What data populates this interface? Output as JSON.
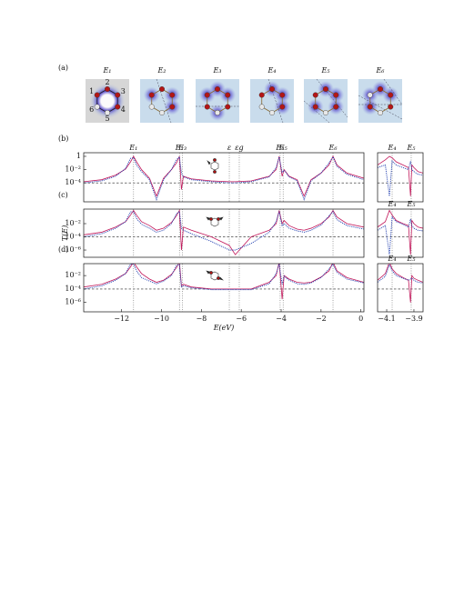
{
  "figure_a": {
    "panel_label": "(a)",
    "states": [
      "E₁",
      "E₂",
      "E₃",
      "E₄",
      "E₅",
      "E₆"
    ],
    "site_labels": [
      "1",
      "2",
      "3",
      "4",
      "5",
      "6"
    ]
  },
  "chart_data": [
    {
      "type": "line",
      "panel_label": "(b)",
      "log_y": true,
      "xlim": [
        -13.9,
        0.15
      ],
      "ylim": [
        1.4e-07,
        3.5
      ],
      "yticks": [
        {
          "value": 1,
          "label": "1"
        },
        {
          "value": 0.01,
          "label": "10⁻²"
        },
        {
          "value": 0.0001,
          "label": "10⁻⁴"
        }
      ],
      "reference_level": 0.0001,
      "vlines": [
        {
          "value": -11.4,
          "label": "E₁"
        },
        {
          "value": -9.1,
          "label": "E₂"
        },
        {
          "value": -8.95,
          "label": "E₃"
        },
        {
          "value": -6.6,
          "label": "ε"
        },
        {
          "value": -6.1,
          "label": "εg"
        },
        {
          "value": -4.05,
          "label": "E₄"
        },
        {
          "value": -3.9,
          "label": "E₅"
        },
        {
          "value": -1.4,
          "label": "E₆"
        }
      ],
      "x": [
        -13.9,
        -13,
        -12.3,
        -11.8,
        -11.55,
        -11.4,
        -11.25,
        -11,
        -10.6,
        -10.25,
        -9.9,
        -9.5,
        -9.25,
        -9.1,
        -9.0,
        -8.9,
        -8.5,
        -7.5,
        -6.6,
        -6.3,
        -5.5,
        -4.6,
        -4.25,
        -4.1,
        -3.95,
        -3.85,
        -3.6,
        -3.2,
        -2.85,
        -2.5,
        -2,
        -1.6,
        -1.4,
        -1.2,
        -0.7,
        0.15
      ],
      "series": [
        {
          "color": "#c2185b",
          "line_style": "solid",
          "values": [
            0.00015,
            0.0003,
            0.0015,
            0.012,
            0.15,
            1,
            0.15,
            0.01,
            0.0005,
            1e-06,
            0.0005,
            0.01,
            0.1,
            1,
            1e-05,
            0.001,
            0.0004,
            0.0002,
            0.00015,
            0.00015,
            0.0002,
            0.001,
            0.01,
            1,
            0.001,
            0.01,
            0.001,
            0.0003,
            1e-06,
            0.0003,
            0.003,
            0.05,
            1,
            0.05,
            0.003,
            0.0005
          ]
        },
        {
          "color": "#2340b0",
          "line_style": "dotted",
          "values": [
            0.0001,
            0.0002,
            0.001,
            0.015,
            0.5,
            0.6,
            0.05,
            0.005,
            0.0003,
            3e-07,
            0.0003,
            0.01,
            0.3,
            0.8,
            0.003,
            0.0008,
            0.0003,
            0.00015,
            0.0001,
            0.0001,
            0.00015,
            0.0008,
            0.02,
            0.8,
            0.004,
            0.008,
            0.0008,
            0.0002,
            3e-07,
            0.0002,
            0.003,
            0.1,
            0.8,
            0.03,
            0.002,
            0.0003
          ]
        }
      ]
    },
    {
      "type": "line",
      "panel_label": "(c)",
      "ylabel": "T(E)",
      "log_y": true,
      "xlim": [
        -13.9,
        0.15
      ],
      "ylim": [
        8e-08,
        1.6
      ],
      "yticks": [
        {
          "value": 0.01,
          "label": "10⁻²"
        },
        {
          "value": 0.0001,
          "label": "10⁻⁴"
        },
        {
          "value": 1e-06,
          "label": "10⁻⁶"
        }
      ],
      "reference_level": 0.0001,
      "vlines": [
        -11.4,
        -9.1,
        -8.95,
        -6.6,
        -6.1,
        -4.05,
        -3.9,
        -1.4
      ],
      "x": [
        -13.9,
        -13,
        -12.3,
        -11.8,
        -11.55,
        -11.4,
        -11.25,
        -11,
        -10.6,
        -10.25,
        -9.9,
        -9.5,
        -9.25,
        -9.1,
        -9.0,
        -8.9,
        -8.5,
        -7.5,
        -6.6,
        -6.3,
        -5.5,
        -4.6,
        -4.25,
        -4.1,
        -3.95,
        -3.85,
        -3.6,
        -3.2,
        -2.85,
        -2.5,
        -2,
        -1.6,
        -1.4,
        -1.2,
        -0.7,
        0.15
      ],
      "series": [
        {
          "color": "#c2185b",
          "line_style": "solid",
          "values": [
            0.0002,
            0.0005,
            0.003,
            0.02,
            0.2,
            1,
            0.2,
            0.02,
            0.005,
            0.001,
            0.002,
            0.015,
            0.15,
            1,
            1e-06,
            0.003,
            0.001,
            0.0001,
            5e-06,
            2e-07,
            0.0001,
            0.001,
            0.01,
            1,
            0.01,
            0.03,
            0.005,
            0.0015,
            0.001,
            0.002,
            0.01,
            0.1,
            1,
            0.1,
            0.01,
            0.003
          ]
        },
        {
          "color": "#2340b0",
          "line_style": "dotted",
          "values": [
            0.0001,
            0.0003,
            0.002,
            0.02,
            0.6,
            0.6,
            0.06,
            0.008,
            0.002,
            0.0005,
            0.001,
            0.01,
            0.3,
            0.7,
            0.002,
            0.001,
            0.0003,
            2e-05,
            1e-06,
            1e-06,
            1e-05,
            0.0005,
            0.02,
            0.7,
            0.005,
            0.01,
            0.002,
            0.0008,
            0.0005,
            0.001,
            0.006,
            0.15,
            0.7,
            0.04,
            0.005,
            0.0015
          ]
        }
      ]
    },
    {
      "type": "line",
      "panel_label": "(d)",
      "xlabel": "E(eV)",
      "log_y": true,
      "xlim": [
        -13.9,
        0.15
      ],
      "ylim": [
        4e-08,
        0.6
      ],
      "xticks": [
        {
          "value": -12,
          "label": "−12"
        },
        {
          "value": -10,
          "label": "−10"
        },
        {
          "value": -8,
          "label": "−8"
        },
        {
          "value": -6,
          "label": "−6"
        },
        {
          "value": -4,
          "label": "−4"
        },
        {
          "value": -2,
          "label": "−2"
        },
        0
      ],
      "yticks": [
        {
          "value": 0.01,
          "label": "10⁻²"
        },
        {
          "value": 0.0001,
          "label": "10⁻⁴"
        },
        {
          "value": 1e-06,
          "label": "10⁻⁶"
        }
      ],
      "reference_level": 0.0001,
      "vlines": [
        -11.4,
        -9.1,
        -8.95,
        -6.6,
        -6.1,
        -4.05,
        -3.9,
        -1.4
      ],
      "x": [
        -13.9,
        -13,
        -12.3,
        -11.8,
        -11.55,
        -11.4,
        -11.25,
        -11,
        -10.6,
        -10.25,
        -9.9,
        -9.5,
        -9.25,
        -9.1,
        -9.0,
        -8.9,
        -8.5,
        -7.5,
        -6.6,
        -6.3,
        -5.5,
        -4.6,
        -4.25,
        -4.1,
        -3.95,
        -3.85,
        -3.6,
        -3.2,
        -2.85,
        -2.5,
        -2,
        -1.6,
        -1.4,
        -1.2,
        -0.7,
        0.15
      ],
      "series": [
        {
          "color": "#c2185b",
          "line_style": "solid",
          "values": [
            0.0002,
            0.0005,
            0.003,
            0.02,
            0.2,
            1,
            0.2,
            0.02,
            0.003,
            0.001,
            0.002,
            0.015,
            0.15,
            1,
            0.0003,
            0.0005,
            0.0002,
            0.0001,
            0.0001,
            0.0001,
            0.0001,
            0.001,
            0.01,
            1,
            3e-06,
            0.01,
            0.003,
            0.001,
            0.0008,
            0.001,
            0.006,
            0.05,
            1,
            0.05,
            0.005,
            0.001
          ]
        },
        {
          "color": "#2340b0",
          "line_style": "dotted",
          "values": [
            0.0001,
            0.0003,
            0.002,
            0.02,
            0.5,
            0.5,
            0.05,
            0.005,
            0.0015,
            0.0006,
            0.0015,
            0.01,
            0.3,
            0.4,
            0.0002,
            0.0003,
            0.00015,
            8e-05,
            8e-05,
            8e-05,
            8e-05,
            0.0006,
            0.02,
            0.5,
            0.0005,
            0.008,
            0.002,
            0.0006,
            0.0005,
            0.0008,
            0.005,
            0.1,
            0.5,
            0.03,
            0.003,
            0.0008
          ]
        }
      ]
    },
    {
      "type": "line",
      "log_y": true,
      "xlim": [
        -4.167,
        -3.833
      ],
      "ylim": [
        1.4e-07,
        3.5
      ],
      "reference_level": 0.0001,
      "vlines": [
        {
          "value": -4.06,
          "label": "E₄"
        },
        {
          "value": -3.92,
          "label": "E₅"
        }
      ],
      "x": [
        -4.167,
        -4.11,
        -4.08,
        -4.06,
        -4.03,
        -3.98,
        -3.94,
        -3.925,
        -3.915,
        -3.9,
        -3.87,
        -3.833
      ],
      "series": [
        {
          "color": "#c2185b",
          "line_style": "solid",
          "values": [
            0.05,
            0.3,
            1,
            0.6,
            0.15,
            0.05,
            0.02,
            1e-06,
            0.05,
            0.02,
            0.005,
            0.003
          ]
        },
        {
          "color": "#2340b0",
          "line_style": "dotted",
          "values": [
            0.02,
            0.05,
            1e-06,
            0.2,
            0.05,
            0.02,
            0.01,
            0.2,
            0.01,
            0.005,
            0.002,
            0.0015
          ]
        }
      ]
    },
    {
      "type": "line",
      "log_y": true,
      "xlim": [
        -4.167,
        -3.833
      ],
      "ylim": [
        8e-08,
        1.6
      ],
      "reference_level": 0.0001,
      "vlines": [
        {
          "value": -4.06,
          "label": "E₄"
        },
        {
          "value": -3.92,
          "label": "E₅"
        }
      ],
      "x": [
        -4.167,
        -4.11,
        -4.08,
        -4.06,
        -4.03,
        -3.98,
        -3.94,
        -3.925,
        -3.915,
        -3.9,
        -3.87,
        -3.833
      ],
      "series": [
        {
          "color": "#c2185b",
          "line_style": "solid",
          "values": [
            0.003,
            0.02,
            1,
            0.2,
            0.03,
            0.01,
            0.005,
            2e-07,
            0.03,
            0.01,
            0.003,
            0.002
          ]
        },
        {
          "color": "#2340b0",
          "line_style": "dotted",
          "values": [
            0.001,
            0.005,
            2e-07,
            0.1,
            0.02,
            0.008,
            0.003,
            0.05,
            0.005,
            0.002,
            0.001,
            0.0008
          ]
        }
      ]
    },
    {
      "type": "line",
      "log_y": true,
      "xlim": [
        -4.167,
        -3.833
      ],
      "ylim": [
        4e-08,
        0.6
      ],
      "reference_level": 0.0001,
      "xticks": [
        {
          "value": -4.1,
          "label": "−4.1"
        },
        {
          "value": -3.9,
          "label": "−3.9"
        }
      ],
      "vlines": [
        {
          "value": -4.06,
          "label": "E₄"
        },
        {
          "value": -3.92,
          "label": "E₅"
        }
      ],
      "x": [
        -4.167,
        -4.11,
        -4.08,
        -4.06,
        -4.03,
        -3.98,
        -3.94,
        -3.925,
        -3.915,
        -3.9,
        -3.87,
        -3.833
      ],
      "series": [
        {
          "color": "#c2185b",
          "line_style": "solid",
          "values": [
            0.002,
            0.02,
            1,
            0.1,
            0.02,
            0.005,
            0.002,
            1e-06,
            0.01,
            0.004,
            0.002,
            0.001
          ]
        },
        {
          "color": "#2340b0",
          "line_style": "dotted",
          "values": [
            0.001,
            0.008,
            0.4,
            0.05,
            0.01,
            0.004,
            0.002,
            0.003,
            0.004,
            0.002,
            0.001,
            0.0008
          ]
        }
      ]
    }
  ]
}
